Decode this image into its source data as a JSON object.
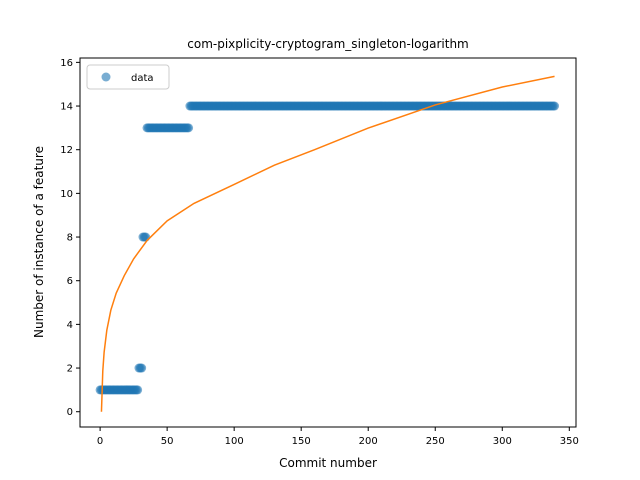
{
  "chart_data": {
    "type": "scatter",
    "title": "com-pixplicity-cryptogram_singleton-logarithm",
    "xlabel": "Commit number",
    "ylabel": "Number of instance of a feature",
    "xlim": [
      -15,
      355
    ],
    "ylim": [
      -0.7,
      16.2
    ],
    "xticks": [
      0,
      50,
      100,
      150,
      200,
      250,
      300,
      350
    ],
    "yticks": [
      0,
      2,
      4,
      6,
      8,
      10,
      12,
      14,
      16
    ],
    "legend": {
      "position": "top-left",
      "entries": [
        {
          "label": "data",
          "marker": "circle"
        }
      ]
    },
    "colors": {
      "scatter": "#1f77b4",
      "fit": "#ff7f0e"
    },
    "series": [
      {
        "name": "data",
        "kind": "scatter-step",
        "segments": [
          {
            "x_start": 0,
            "x_end": 28,
            "y": 1
          },
          {
            "x_start": 29,
            "x_end": 31,
            "y": 2
          },
          {
            "x_start": 32,
            "x_end": 34,
            "y": 8
          },
          {
            "x_start": 35,
            "x_end": 66,
            "y": 13
          },
          {
            "x_start": 67,
            "x_end": 339,
            "y": 14
          }
        ]
      },
      {
        "kind": "line",
        "model": "logarithmic",
        "points": [
          [
            1,
            0.0
          ],
          [
            2,
            1.87
          ],
          [
            3,
            2.73
          ],
          [
            5,
            3.73
          ],
          [
            8,
            4.65
          ],
          [
            12,
            5.43
          ],
          [
            18,
            6.23
          ],
          [
            25,
            7.0
          ],
          [
            35,
            7.84
          ],
          [
            50,
            8.74
          ],
          [
            70,
            9.54
          ],
          [
            100,
            10.41
          ],
          [
            130,
            11.29
          ],
          [
            160,
            12.0
          ],
          [
            200,
            12.99
          ],
          [
            250,
            14.05
          ],
          [
            300,
            14.87
          ],
          [
            339,
            15.36
          ]
        ]
      }
    ]
  }
}
